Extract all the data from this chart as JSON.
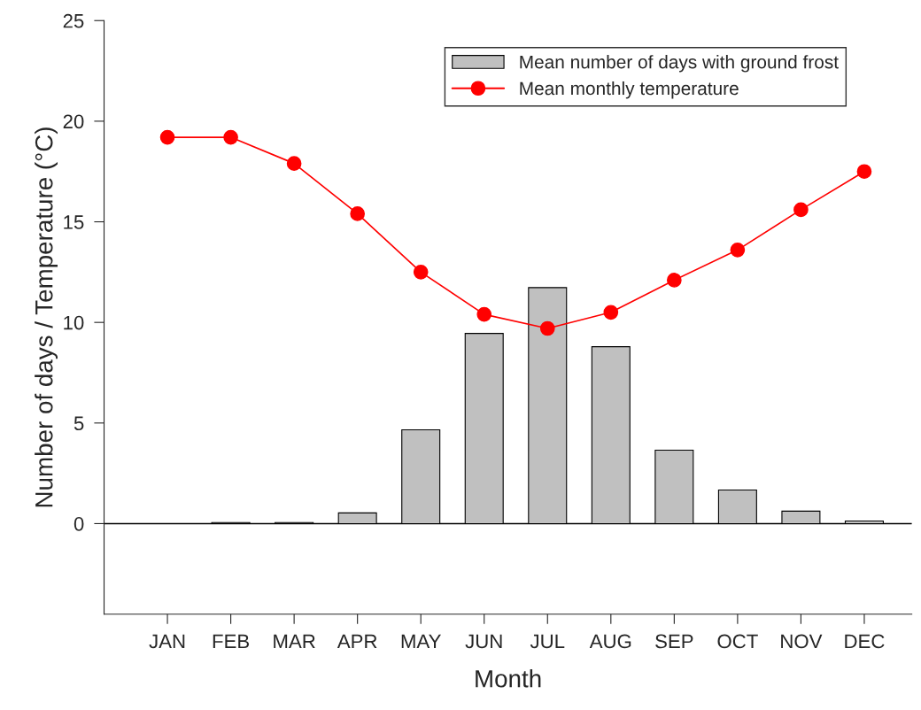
{
  "chart_data": {
    "type": "bar",
    "xlabel": "Month",
    "ylabel": "Number of days / Temperature (°C)",
    "categories": [
      "JAN",
      "FEB",
      "MAR",
      "APR",
      "MAY",
      "JUN",
      "JUL",
      "AUG",
      "SEP",
      "OCT",
      "NOV",
      "DEC"
    ],
    "series": [
      {
        "name": "Mean number of days with ground frost",
        "color": "#c0c0c0",
        "values": [
          null,
          0.05,
          0.05,
          0.53,
          4.66,
          9.45,
          11.73,
          8.79,
          3.65,
          1.67,
          0.62,
          0.13
        ]
      },
      {
        "name": "Mean monthly temperature",
        "type": "line",
        "color": "#ff0000",
        "marker": "circle",
        "values": [
          19.2,
          19.2,
          17.9,
          15.4,
          12.5,
          10.4,
          9.7,
          10.5,
          12.1,
          13.6,
          15.6,
          17.5
        ]
      }
    ],
    "ylim": [
      -4.5,
      25
    ],
    "yticks": [
      0,
      5,
      10,
      15,
      20,
      25
    ],
    "ref_lines": [
      {
        "axis": "y",
        "value": 0,
        "color": "#000000"
      }
    ],
    "legend": "top right",
    "grid": false
  }
}
